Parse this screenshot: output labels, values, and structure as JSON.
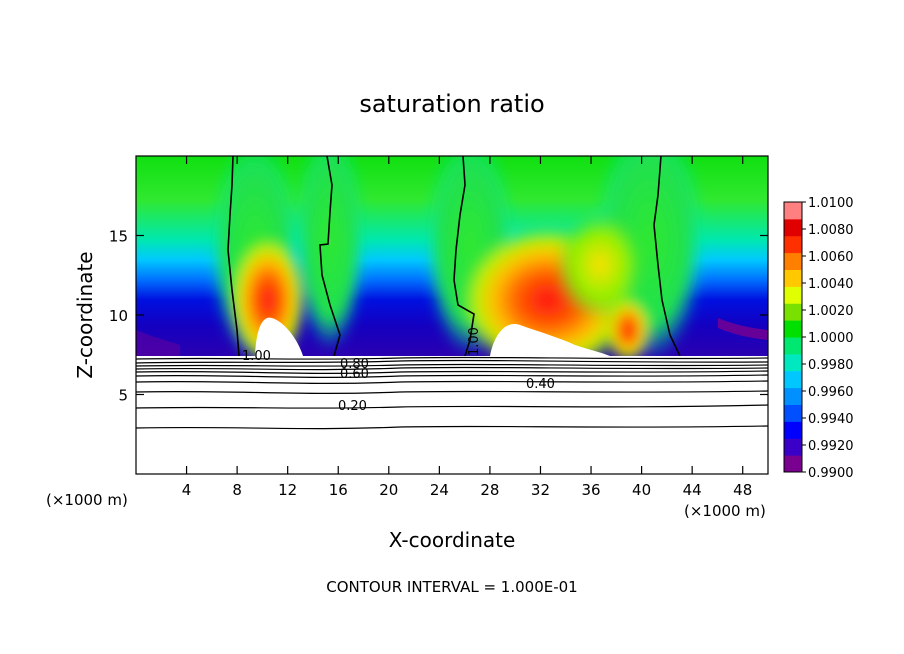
{
  "chart_data": {
    "type": "heatmap",
    "title": "saturation ratio",
    "xlabel": "X-coordinate",
    "ylabel": "Z-coordinate",
    "x_unit_left": "(×1000 m)",
    "x_unit_right": "(×1000 m)",
    "footer": "CONTOUR INTERVAL = 1.000E-01",
    "xlim": [
      0,
      50
    ],
    "ylim": [
      0,
      20
    ],
    "xticks": [
      "4",
      "8",
      "12",
      "16",
      "20",
      "24",
      "28",
      "32",
      "36",
      "40",
      "44",
      "48"
    ],
    "yticks": [
      "5",
      "10",
      "15"
    ],
    "colorbar": {
      "min": 0.99,
      "max": 1.01,
      "labels": [
        "1.0100",
        "1.0080",
        "1.0060",
        "1.0040",
        "1.0020",
        "1.0000",
        "0.9980",
        "0.9960",
        "0.9940",
        "0.9920",
        "0.9900"
      ],
      "colors": [
        "#7a0090",
        "#3a00c8",
        "#0000ff",
        "#0050ff",
        "#0090ff",
        "#00c8ff",
        "#00e8c0",
        "#00e870",
        "#00e000",
        "#7ae000",
        "#e0ff00",
        "#ffc800",
        "#ff8000",
        "#ff3000",
        "#e00000",
        "#ff8080"
      ]
    },
    "contour_labels": [
      "1.00",
      "1.00",
      "0.80",
      "0.60",
      "0.40",
      "0.20"
    ],
    "contour_interval": 0.1,
    "cloud_base_z": 7.2
  }
}
